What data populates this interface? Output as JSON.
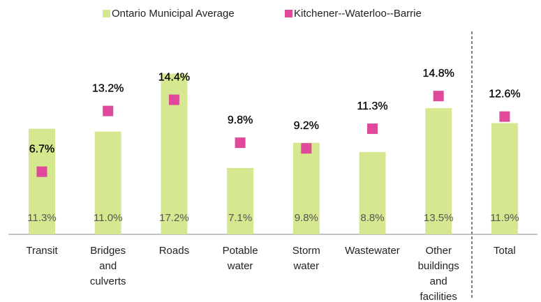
{
  "chart_data": {
    "type": "bar",
    "categories": [
      [
        "Transit"
      ],
      [
        "Bridges",
        "and",
        "culverts"
      ],
      [
        "Roads"
      ],
      [
        "Potable",
        "water"
      ],
      [
        "Storm",
        "water"
      ],
      [
        "Wastewater"
      ],
      [
        "Other",
        "buildings",
        "and",
        "facilities"
      ],
      [
        "Total"
      ]
    ],
    "series": [
      {
        "name": "Ontario Municipal Average",
        "color": "#d5e88f",
        "kind": "bar",
        "values": [
          11.3,
          11.0,
          17.2,
          7.1,
          9.8,
          8.8,
          13.5,
          11.9
        ],
        "value_labels": [
          "11.3%",
          "11.0%",
          "17.2%",
          "7.1%",
          "9.8%",
          "8.8%",
          "13.5%",
          "11.9%"
        ]
      },
      {
        "name": "Kitchener--Waterloo--Barrie",
        "color": "#e0489a",
        "kind": "marker",
        "values": [
          6.7,
          13.2,
          14.4,
          9.8,
          9.2,
          11.3,
          14.8,
          12.6
        ],
        "value_labels": [
          "6.7%",
          "13.2%",
          "14.4%",
          "9.8%",
          "9.2%",
          "11.3%",
          "14.8%",
          "12.6%"
        ]
      }
    ],
    "legend": "top"
  }
}
